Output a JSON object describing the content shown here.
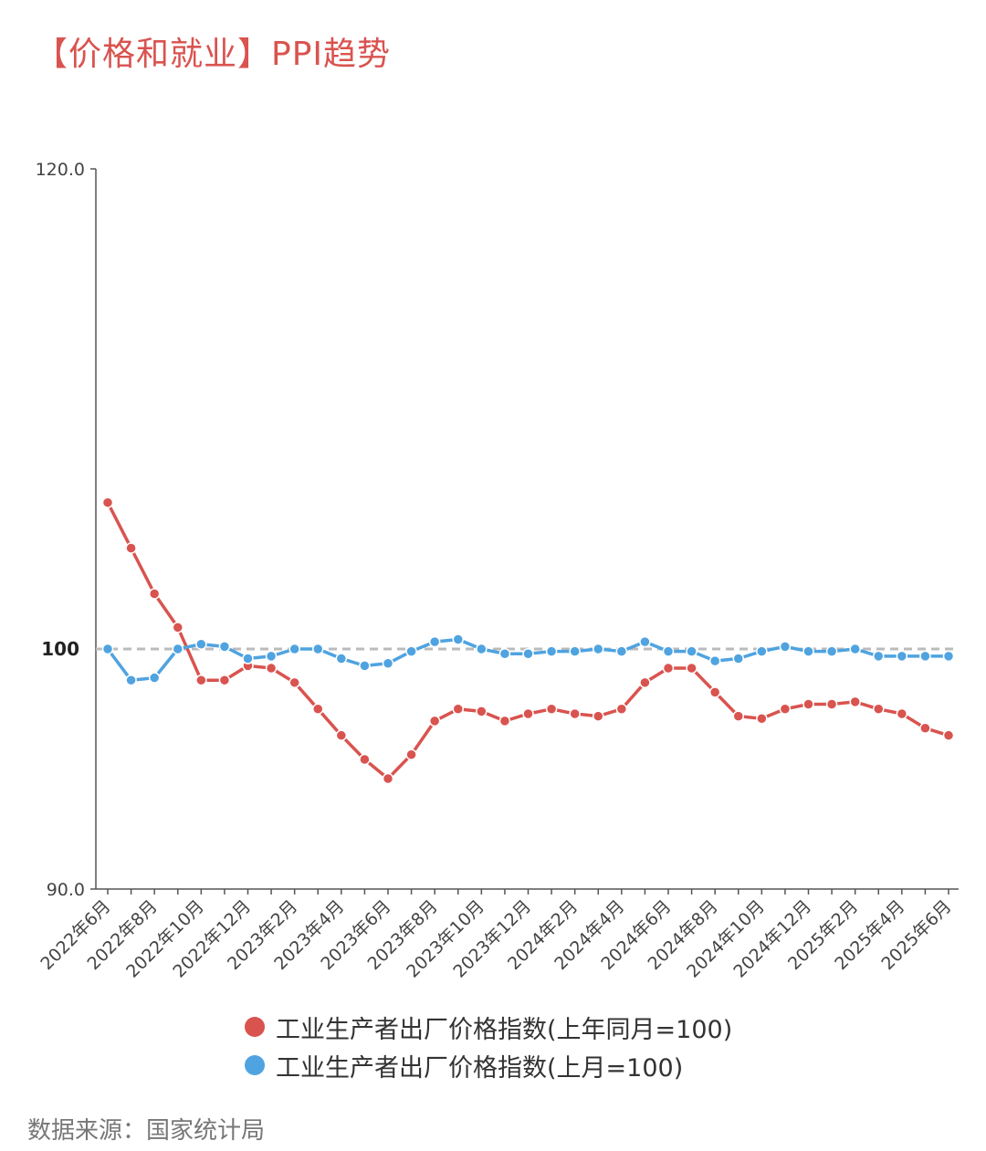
{
  "title": "【价格和就业】PPI趋势",
  "source": "数据来源：国家统计局",
  "colors": {
    "series_red": "#d9534f",
    "series_blue": "#4fa3e0",
    "reference": "#bbbbbb",
    "axis": "#555555"
  },
  "chart_data": {
    "type": "line",
    "title": "【价格和就业】PPI趋势",
    "ylim": [
      90.0,
      120.0
    ],
    "yticks": [
      120.0,
      90.0
    ],
    "ytick_labels": [
      "120.0",
      "90.0"
    ],
    "reference_line": {
      "value": 100,
      "label": "100",
      "style": "dashed"
    },
    "x": [
      "2022年6月",
      "2022年7月",
      "2022年8月",
      "2022年9月",
      "2022年10月",
      "2022年11月",
      "2022年12月",
      "2023年1月",
      "2023年2月",
      "2023年3月",
      "2023年4月",
      "2023年5月",
      "2023年6月",
      "2023年7月",
      "2023年8月",
      "2023年9月",
      "2023年10月",
      "2023年11月",
      "2023年12月",
      "2024年1月",
      "2024年2月",
      "2024年3月",
      "2024年4月",
      "2024年5月",
      "2024年6月",
      "2024年7月",
      "2024年8月",
      "2024年9月",
      "2024年10月",
      "2024年11月",
      "2024年12月",
      "2025年1月",
      "2025年2月",
      "2025年3月",
      "2025年4月",
      "2025年5月",
      "2025年6月"
    ],
    "xtick_labels": [
      "2022年6月",
      "2022年8月",
      "2022年10月",
      "2022年12月",
      "2023年2月",
      "2023年4月",
      "2023年6月",
      "2023年8月",
      "2023年10月",
      "2023年12月",
      "2024年2月",
      "2024年4月",
      "2024年6月",
      "2024年8月",
      "2024年10月",
      "2024年12月",
      "2025年2月",
      "2025年4月",
      "2025年6月"
    ],
    "grid": false,
    "legend_position": "bottom",
    "series": [
      {
        "name": "工业生产者出厂价格指数(上年同月=100)",
        "color": "#d9534f",
        "values": [
          106.1,
          104.2,
          102.3,
          100.9,
          98.7,
          98.7,
          99.3,
          99.2,
          98.6,
          97.5,
          96.4,
          95.4,
          94.6,
          95.6,
          97.0,
          97.5,
          97.4,
          97.0,
          97.3,
          97.5,
          97.3,
          97.2,
          97.5,
          98.6,
          99.2,
          99.2,
          98.2,
          97.2,
          97.1,
          97.5,
          97.7,
          97.7,
          97.8,
          97.5,
          97.3,
          96.7,
          96.4
        ]
      },
      {
        "name": "工业生产者出厂价格指数(上月=100)",
        "color": "#4fa3e0",
        "values": [
          100.0,
          98.7,
          98.8,
          100.0,
          100.2,
          100.1,
          99.6,
          99.7,
          100.0,
          100.0,
          99.6,
          99.3,
          99.4,
          99.9,
          100.3,
          100.4,
          100.0,
          99.8,
          99.8,
          99.9,
          99.9,
          100.0,
          99.9,
          100.3,
          99.9,
          99.9,
          99.5,
          99.6,
          99.9,
          100.1,
          99.9,
          99.9,
          100.0,
          99.7,
          99.7,
          99.7,
          99.7
        ]
      }
    ]
  }
}
